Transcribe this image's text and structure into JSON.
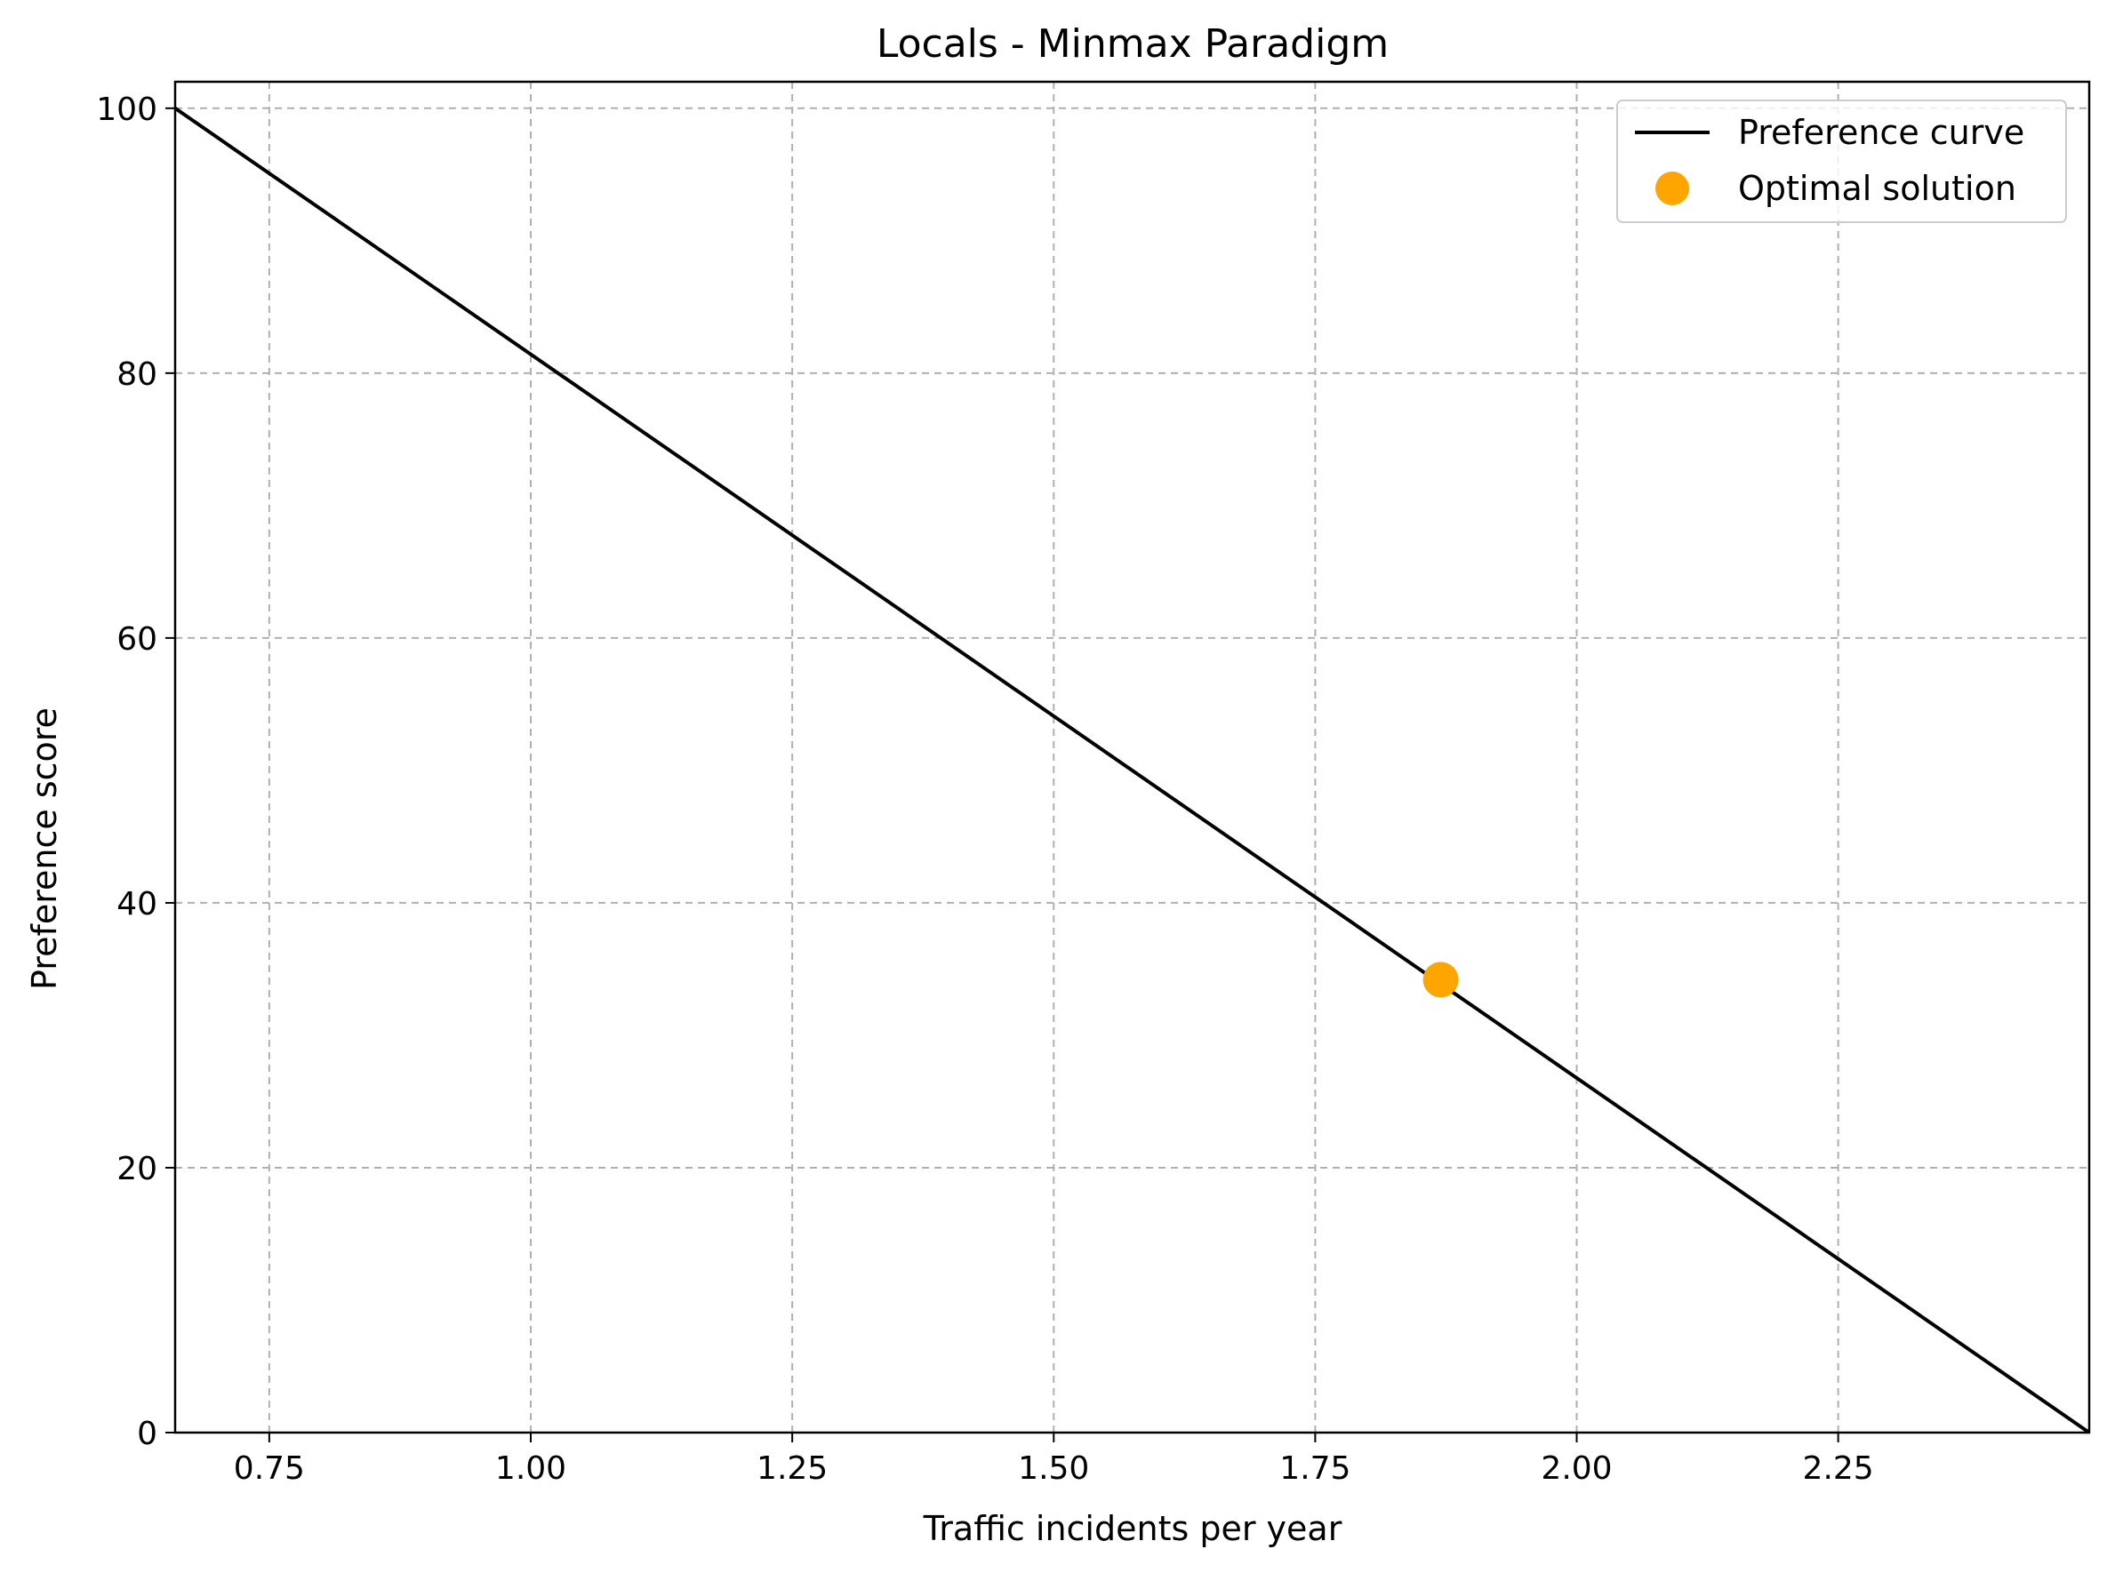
{
  "chart_data": {
    "type": "line",
    "title": "Locals - Minmax Paradigm",
    "xlabel": "Traffic incidents per year",
    "ylabel": "Preference score",
    "xlim": [
      0.66,
      2.49
    ],
    "ylim": [
      0,
      102
    ],
    "x_ticks": [
      0.75,
      1.0,
      1.25,
      1.5,
      1.75,
      2.0,
      2.25
    ],
    "x_tick_labels": [
      "0.75",
      "1.00",
      "1.25",
      "1.50",
      "1.75",
      "2.00",
      "2.25"
    ],
    "y_ticks": [
      0,
      20,
      40,
      60,
      80,
      100
    ],
    "y_tick_labels": [
      "0",
      "20",
      "40",
      "60",
      "80",
      "100"
    ],
    "grid": true,
    "legend_position": "top-right",
    "series": [
      {
        "name": "Preference curve",
        "kind": "line",
        "color": "#000000",
        "x": [
          0.66,
          2.49
        ],
        "y": [
          100,
          0
        ]
      },
      {
        "name": "Optimal solution",
        "kind": "scatter",
        "color": "#FFA500",
        "x": [
          1.87
        ],
        "y": [
          34.2
        ]
      }
    ]
  }
}
